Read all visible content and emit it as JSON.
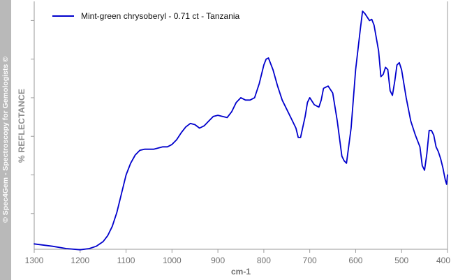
{
  "side_banner": "© Spec4Gem - Spectroscopy for Gemologists ©",
  "colors": {
    "series": "#0000cc",
    "axis": "#9a9a9a",
    "text": "#707070",
    "banner_bg": "#b9b9b9"
  },
  "chart_data": {
    "type": "line",
    "title": "",
    "xlabel": "cm-1",
    "ylabel": "%  REFLECTANCE",
    "xlim": [
      1300,
      400
    ],
    "x_reversed": true,
    "ylim": [
      0,
      100
    ],
    "y_ticks_labeled": false,
    "grid": false,
    "legend_position": "top-left",
    "x_ticks": [
      1300,
      1200,
      1100,
      1000,
      900,
      800,
      700,
      600,
      500,
      400
    ],
    "x_tick_labels": [
      "1300",
      "1200",
      "1100",
      "1000",
      "900",
      "800",
      "700",
      "600",
      "500",
      "400"
    ],
    "y_ticks": [
      13.5,
      30,
      46.5,
      63,
      79.5,
      96
    ],
    "series": [
      {
        "name": "Mint-green chrysoberyl - 0.71 ct - Tanzania",
        "x": [
          1300,
          1260,
          1230,
          1200,
          1180,
          1165,
          1150,
          1140,
          1130,
          1120,
          1110,
          1100,
          1090,
          1080,
          1070,
          1060,
          1050,
          1040,
          1030,
          1020,
          1010,
          1000,
          990,
          980,
          970,
          960,
          950,
          940,
          930,
          920,
          910,
          900,
          890,
          880,
          870,
          860,
          850,
          840,
          830,
          820,
          810,
          800,
          795,
          790,
          780,
          770,
          760,
          750,
          740,
          730,
          725,
          720,
          710,
          705,
          700,
          690,
          680,
          675,
          670,
          660,
          650,
          640,
          630,
          625,
          620,
          610,
          600,
          590,
          585,
          580,
          570,
          565,
          560,
          550,
          545,
          540,
          535,
          530,
          525,
          520,
          515,
          510,
          505,
          500,
          490,
          480,
          470,
          460,
          455,
          450,
          445,
          440,
          435,
          430,
          425,
          420,
          415,
          410,
          405,
          402,
          400
        ],
        "y": [
          0.5,
          -0.5,
          -1.5,
          -2,
          -1.5,
          -0.5,
          1.5,
          4,
          8,
          14,
          22,
          30,
          35,
          38.5,
          40.5,
          41,
          41,
          41,
          41.5,
          42,
          42,
          43,
          45,
          48,
          50.5,
          52,
          51.5,
          50,
          51,
          53,
          55,
          55.5,
          55,
          54.5,
          57,
          61,
          63,
          62,
          62,
          63,
          69,
          77,
          79.5,
          80,
          75,
          68,
          62,
          58,
          54,
          50,
          46,
          46,
          55,
          61,
          63,
          60,
          59,
          62,
          67,
          68,
          65,
          53,
          38,
          36,
          35,
          50,
          75,
          92,
          100,
          99,
          96,
          96.5,
          94,
          83,
          72,
          73,
          76,
          75,
          66,
          64,
          70,
          77,
          78,
          75,
          63,
          53,
          47,
          42,
          34,
          32,
          39,
          49,
          49,
          47,
          42,
          40,
          37,
          33,
          28,
          26,
          30
        ]
      }
    ]
  }
}
